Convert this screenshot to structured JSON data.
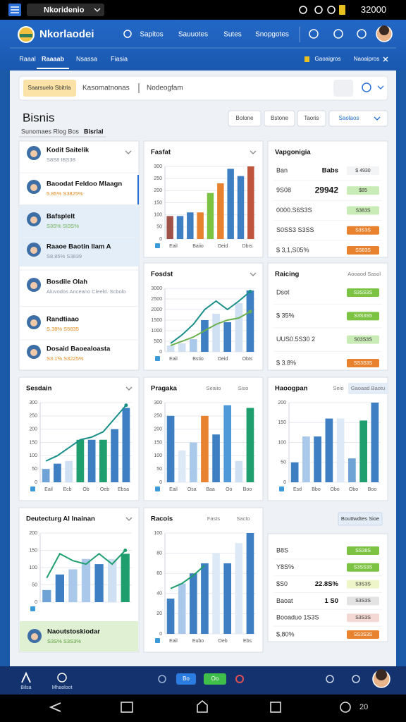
{
  "status_bar": {
    "app": "Nkoridenio",
    "right": "32000"
  },
  "header": {
    "brand": "Nkorlaodei",
    "nav": [
      "Sapitos",
      "Sauuotes",
      "Sutes",
      "Snopgotes"
    ]
  },
  "tabs": {
    "items": [
      "Raaal",
      "Raaaab",
      "Nsassa",
      "Fiasia"
    ],
    "right": [
      "Gaoaigros",
      "Naoaipros"
    ]
  },
  "search": {
    "chip": "Saarsuelo Sbitrla",
    "placeholder": "Kasomatnonas",
    "filter": "Nodeogfam"
  },
  "page": {
    "title": "Bisnis",
    "subtitle": "Sunomaes Rlog Bos",
    "active": "Bisrial",
    "buttons": [
      "Bolone",
      "Bstone",
      "Taoris",
      "Saolaos"
    ]
  },
  "contacts": [
    {
      "name": "Kodit Saitelik",
      "detail": "S8S8 IBS38",
      "detail_color": "#8a93a3"
    },
    {
      "name": "Baoodat Feldoo Mlaagn",
      "detail": "5.85% S3825%",
      "detail_color": "#e08a1e"
    },
    {
      "name": "Bafsplelt",
      "detail": "S3S% SI3S%",
      "detail_color": "#6ab04c"
    },
    {
      "name": "Raaoe Baotin Ilam A",
      "detail": "S8.85% S3839",
      "detail_color": "#8a93a3"
    },
    {
      "name": "Bosdile Olah",
      "detail": "Aluvodos Anceano Cleeld. Scbolo",
      "detail_color": "#8a93a3"
    },
    {
      "name": "Randtiaao",
      "detail": "S.38% S5835",
      "detail_color": "#e08a1e"
    },
    {
      "name": "Dosaid Baoealoasta",
      "detail": "S3.1% S3225%",
      "detail_color": "#e08a1e"
    }
  ],
  "charts": [
    {
      "title": "Fasfat",
      "ylim": [
        0,
        300
      ],
      "yticks": [
        0,
        50,
        100,
        150,
        200,
        250,
        300
      ],
      "xlabels": [
        "Eail",
        "Baiio",
        "Oeid",
        "Dbrs"
      ],
      "bars": {
        "values": [
          95,
          95,
          110,
          110,
          190,
          230,
          290,
          260,
          300
        ],
        "colors": [
          "#a0524a",
          "#3d7fc2",
          "#3d7fc2",
          "#e8822e",
          "#7cc243",
          "#e8822e",
          "#3d7fc2",
          "#3d7fc2",
          "#c0553d"
        ]
      }
    },
    {
      "title": "Fosdst",
      "ylim": [
        0,
        3000
      ],
      "yticks": [
        0,
        500,
        1000,
        1500,
        2000,
        2500,
        3000
      ],
      "xlabels": [
        "Eail",
        "Bstio",
        "Oeid",
        "Obts"
      ],
      "bars": {
        "values": [
          300,
          400,
          600,
          1500,
          1800,
          1400,
          2300,
          2900
        ],
        "colors": [
          "#cfe0f3",
          "#cfe0f3",
          "#a9c8ea",
          "#3d7fc2",
          "#cfe0f3",
          "#3d7fc2",
          "#cfe0f3",
          "#3d7fc2"
        ]
      },
      "lines": [
        {
          "color": "#1a8f8a",
          "values": [
            400,
            800,
            1300,
            2000,
            2400,
            2000,
            2400,
            2850
          ]
        },
        {
          "color": "#6ab04c",
          "values": [
            300,
            500,
            700,
            1000,
            1300,
            1500,
            1600,
            1900
          ]
        }
      ]
    },
    {
      "title": "Sesdain",
      "ylim": [
        0,
        300
      ],
      "yticks": [
        0,
        50,
        100,
        150,
        200,
        250,
        300
      ],
      "xlabels": [
        "Eail",
        "Ecb",
        "Ob",
        "Oeb",
        "Ebsa"
      ],
      "bars": {
        "values": [
          50,
          70,
          80,
          160,
          160,
          160,
          200,
          280
        ],
        "colors": [
          "#6fa3d6",
          "#3d7fc2",
          "#cfe0f3",
          "#1f9e6e",
          "#3d7fc2",
          "#1f9e6e",
          "#3d7fc2",
          "#3d7fc2"
        ]
      },
      "lines": [
        {
          "color": "#1a8f8a",
          "values": [
            80,
            100,
            130,
            160,
            170,
            190,
            240,
            290
          ]
        }
      ]
    },
    {
      "title": "Pragaka",
      "header": [
        "Seaiio",
        "Siso"
      ],
      "ylim": [
        0,
        300
      ],
      "yticks": [
        0,
        50,
        100,
        150,
        200,
        250,
        300
      ],
      "xlabels": [
        "Eail",
        "Osa",
        "Baa",
        "Oo",
        "Boo"
      ],
      "bars": {
        "values": [
          250,
          120,
          150,
          250,
          180,
          290,
          80,
          280
        ],
        "colors": [
          "#3d7fc2",
          "#dde9f6",
          "#a9c8ea",
          "#e8822e",
          "#3d7fc2",
          "#4e9ad8",
          "#cfe0f3",
          "#1f9e6e"
        ]
      }
    },
    {
      "title": "Haoogpan",
      "header": [
        "Seio",
        "Gaoaad Baotu"
      ],
      "ylim": [
        0,
        200
      ],
      "yticks": [
        0,
        50,
        100,
        150,
        200
      ],
      "xlabels": [
        "Esd",
        "Bbo",
        "Obo",
        "Obo",
        "Boo"
      ],
      "bars": {
        "values": [
          50,
          115,
          115,
          160,
          160,
          60,
          155,
          200
        ],
        "colors": [
          "#3d7fc2",
          "#a9c8ea",
          "#3d7fc2",
          "#3d7fc2",
          "#dde9f6",
          "#6fa3d6",
          "#1f9e6e",
          "#3d7fc2"
        ]
      }
    },
    {
      "title": "Deutecturg Al Inainan",
      "ylim": [
        0,
        200
      ],
      "yticks": [
        0,
        50,
        100,
        150,
        200
      ],
      "bars": {
        "values": [
          35,
          80,
          95,
          125,
          110,
          125,
          140
        ],
        "colors": [
          "#6fa3d6",
          "#3d7fc2",
          "#a9c8ea",
          "#a9c8ea",
          "#3d7fc2",
          "#cfe0f3",
          "#1f9e6e"
        ]
      },
      "lines": [
        {
          "color": "#1f9e6e",
          "values": [
            70,
            140,
            120,
            110,
            140,
            110,
            150
          ]
        }
      ],
      "footer": {
        "name": "Naoutstoskiodar",
        "detail": "S3S% S3S3%"
      }
    },
    {
      "title": "Racois",
      "header": [
        "Fasts",
        "Sacto"
      ],
      "ylim": [
        0,
        100
      ],
      "yticks": [
        0,
        20,
        40,
        60,
        80,
        100
      ],
      "xlabels": [
        "Eail",
        "Eubo",
        "Oeb",
        "Ebs"
      ],
      "bars": {
        "values": [
          35,
          50,
          60,
          70,
          80,
          70,
          90,
          100
        ],
        "colors": [
          "#3d7fc2",
          "#a9c8ea",
          "#3d7fc2",
          "#3d7fc2",
          "#dde9f6",
          "#3d7fc2",
          "#dde9f6",
          "#3d7fc2"
        ]
      },
      "lines": [
        {
          "color": "#1f9e6e",
          "values": [
            45,
            50,
            58,
            68,
            null,
            null,
            null,
            null
          ]
        }
      ]
    }
  ],
  "tables": [
    {
      "title": "Vapgonigia",
      "rows": [
        {
          "label": "Ban",
          "value": "Babs",
          "badge": "$ 4930",
          "color": "#f3f4f6"
        },
        {
          "label": "9S08",
          "value": "29942",
          "badge": "$85",
          "color": "#c9ebb5"
        },
        {
          "label": "0000.S6S3S",
          "badge": "S383S",
          "color": "#c9ebb5"
        },
        {
          "label": "S0SS3 S3SS",
          "badge": "S3S3S",
          "color": "#e8822e"
        },
        {
          "label": "$ 3,1,S05%",
          "badge": "SS83S",
          "color": "#e8822e"
        }
      ]
    },
    {
      "title": "Raicing",
      "header": "Aooaod Sasol",
      "rows": [
        {
          "label": "Dsot",
          "badge": "S3SS3S",
          "color": "#7cc243"
        },
        {
          "label": "$ 35%",
          "badge": "S3S3S5",
          "color": "#7cc243"
        },
        {
          "label": "UUS0.5S30 2",
          "badge": "S03S3S",
          "color": "#c9ebb5"
        },
        {
          "label": "$ 3.8%",
          "badge": "SS3S3S",
          "color": "#e8822e"
        }
      ]
    },
    {
      "header": "Bouttwdtes Sioe",
      "rows": [
        {
          "label": "B8S",
          "badge": "SS38S",
          "color": "#7cc243"
        },
        {
          "label": "Y8S%",
          "badge": "S3SS3S",
          "color": "#7cc243"
        },
        {
          "label": "$S0",
          "value": "22.8S%",
          "badge": "S3S3S",
          "color": "#eef5c8"
        },
        {
          "label": "Baoat",
          "value": "1 S0",
          "badge": "S3S3S",
          "color": "#e3e3e3"
        },
        {
          "label": "Booaduo 1S3S",
          "badge": "S3S3S",
          "color": "#f4d8d3"
        },
        {
          "label": "$,80%",
          "badge": "SS3S3S",
          "color": "#e8822e"
        }
      ]
    }
  ],
  "bottom_nav": {
    "items": [
      "Bilsa",
      "Mhaoloot"
    ],
    "chips": [
      "Bo",
      "Oo"
    ]
  },
  "android": {
    "right": "20"
  }
}
